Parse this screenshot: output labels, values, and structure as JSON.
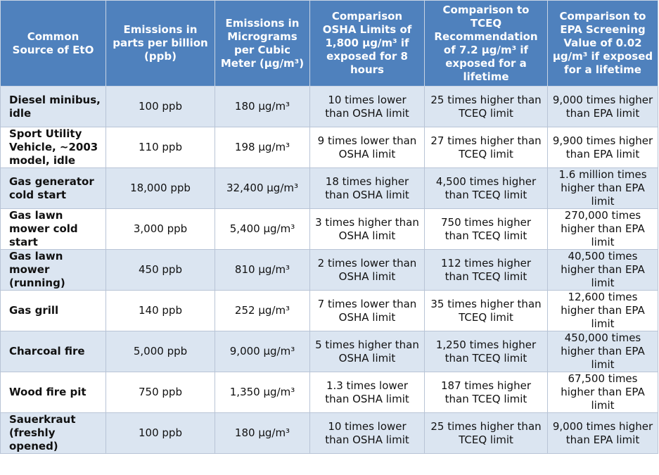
{
  "table": {
    "header": [
      "Common Source of EtO",
      "Emissions in parts per billion (ppb)",
      "Emissions in Micrograms per Cubic Meter (µg/m³)",
      "Comparison OSHA Limits of 1,800 µg/m³ if exposed for 8 hours",
      "Comparison to TCEQ Recommendation of 7.2 µg/m³ if exposed for a lifetime",
      "Comparison to EPA Screening Value of 0.02 µg/m³ if exposed for a lifetime"
    ],
    "rows": [
      [
        "Diesel minibus, idle",
        "100 ppb",
        "180 µg/m³",
        "10 times lower than OSHA limit",
        "25 times higher than TCEQ limit",
        "9,000 times higher than EPA limit"
      ],
      [
        "Sport Utility Vehicle, ~2003 model, idle",
        "110 ppb",
        "198 µg/m³",
        "9 times lower than OSHA limit",
        "27 times higher than TCEQ limit",
        "9,900 times higher than EPA limit"
      ],
      [
        "Gas generator cold start",
        "18,000 ppb",
        "32,400 µg/m³",
        "18 times higher than OSHA limit",
        "4,500 times higher than TCEQ limit",
        "1.6 million times higher than EPA limit"
      ],
      [
        "Gas lawn mower cold start",
        "3,000 ppb",
        "5,400 µg/m³",
        "3 times higher than OSHA limit",
        "750 times higher than TCEQ limit",
        "270,000 times higher than EPA limit"
      ],
      [
        "Gas lawn mower (running)",
        "450 ppb",
        "810 µg/m³",
        "2 times lower than OSHA limit",
        "112 times higher than TCEQ limit",
        "40,500 times higher than EPA limit"
      ],
      [
        "Gas grill",
        "140 ppb",
        "252 µg/m³",
        "7 times lower than OSHA limit",
        "35 times higher than TCEQ limit",
        "12,600 times higher than EPA limit"
      ],
      [
        "Charcoal fire",
        "5,000 ppb",
        "9,000 µg/m³",
        "5 times higher than OSHA limit",
        "1,250 times higher than TCEQ limit",
        "450,000 times higher than EPA limit"
      ],
      [
        "Wood fire pit",
        "750 ppb",
        "1,350 µg/m³",
        "1.3 times lower than OSHA limit",
        "187 times higher than TCEQ limit",
        "67,500 times higher than EPA limit"
      ],
      [
        "Sauerkraut (freshly opened)",
        "100 ppb",
        "180 µg/m³",
        "10 times lower than OSHA limit",
        "25 times higher than TCEQ limit",
        "9,000 times higher than EPA limit"
      ]
    ]
  }
}
